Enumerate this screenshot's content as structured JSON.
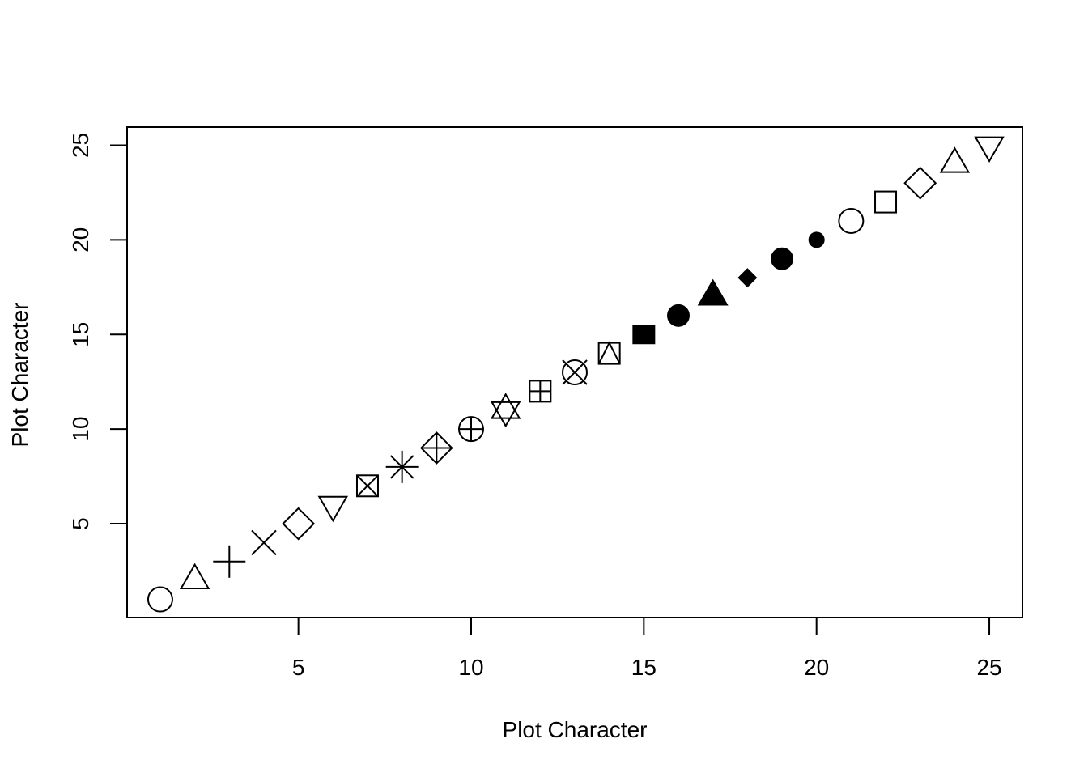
{
  "chart_data": {
    "type": "scatter",
    "title": "",
    "xlabel": "Plot Character",
    "ylabel": "Plot Character",
    "xlim": [
      0.04,
      25.96
    ],
    "ylim": [
      0.04,
      25.96
    ],
    "xticks": [
      5,
      10,
      15,
      20,
      25
    ],
    "yticks": [
      5,
      10,
      15,
      20,
      25
    ],
    "grid": false,
    "points": [
      {
        "x": 1,
        "y": 1,
        "pch": 1
      },
      {
        "x": 2,
        "y": 2,
        "pch": 2
      },
      {
        "x": 3,
        "y": 3,
        "pch": 3
      },
      {
        "x": 4,
        "y": 4,
        "pch": 4
      },
      {
        "x": 5,
        "y": 5,
        "pch": 5
      },
      {
        "x": 6,
        "y": 6,
        "pch": 6
      },
      {
        "x": 7,
        "y": 7,
        "pch": 7
      },
      {
        "x": 8,
        "y": 8,
        "pch": 8
      },
      {
        "x": 9,
        "y": 9,
        "pch": 9
      },
      {
        "x": 10,
        "y": 10,
        "pch": 10
      },
      {
        "x": 11,
        "y": 11,
        "pch": 11
      },
      {
        "x": 12,
        "y": 12,
        "pch": 12
      },
      {
        "x": 13,
        "y": 13,
        "pch": 13
      },
      {
        "x": 14,
        "y": 14,
        "pch": 14
      },
      {
        "x": 15,
        "y": 15,
        "pch": 15
      },
      {
        "x": 16,
        "y": 16,
        "pch": 16
      },
      {
        "x": 17,
        "y": 17,
        "pch": 17
      },
      {
        "x": 18,
        "y": 18,
        "pch": 18
      },
      {
        "x": 19,
        "y": 19,
        "pch": 19
      },
      {
        "x": 20,
        "y": 20,
        "pch": 20
      },
      {
        "x": 21,
        "y": 21,
        "pch": 21
      },
      {
        "x": 22,
        "y": 22,
        "pch": 22
      },
      {
        "x": 23,
        "y": 23,
        "pch": 23
      },
      {
        "x": 24,
        "y": 24,
        "pch": 24
      },
      {
        "x": 25,
        "y": 25,
        "pch": 25
      }
    ]
  }
}
